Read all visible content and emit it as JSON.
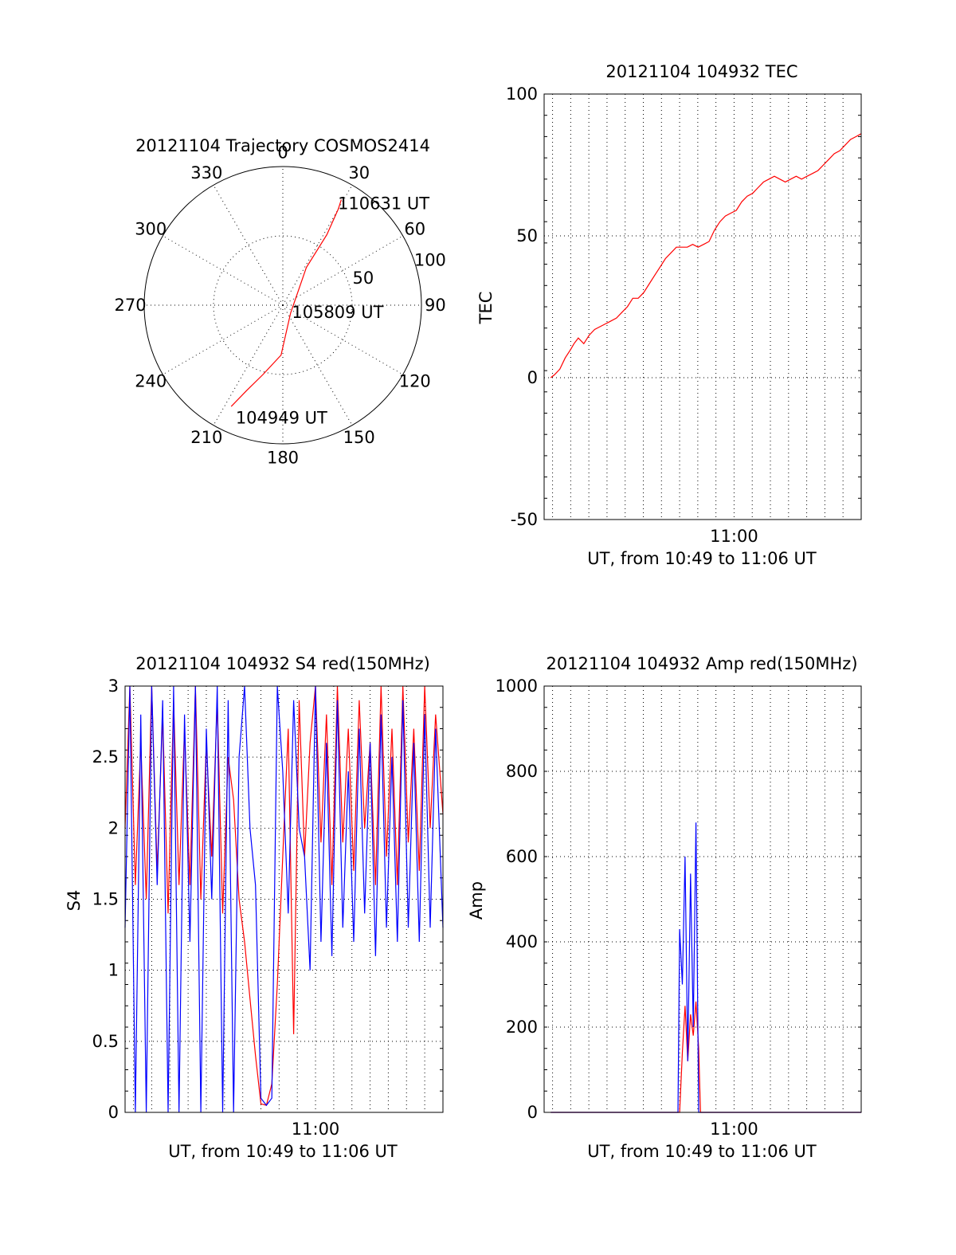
{
  "colors": {
    "red": "#ff0000",
    "blue": "#0000ff",
    "axis": "#000000"
  },
  "chart_data": [
    {
      "id": "trajectory",
      "type": "polar",
      "title": "20121104 Trajectory COSMOS2414",
      "angle_labels": [
        "0",
        "30",
        "60",
        "90",
        "120",
        "150",
        "180",
        "210",
        "240",
        "270",
        "300",
        "330"
      ],
      "radial_labels": [
        "50",
        "100"
      ],
      "radial_max": 100,
      "rings": [
        50,
        100
      ],
      "series": [
        {
          "color": "red",
          "points": [
            [
              207,
              82
            ],
            [
              203,
              67
            ],
            [
              196,
              52
            ],
            [
              182,
              36
            ],
            [
              135,
              8
            ],
            [
              32,
              32
            ],
            [
              32,
              60
            ],
            [
              30,
              80
            ],
            [
              29,
              87
            ]
          ]
        }
      ],
      "annotations": [
        {
          "text": "110631 UT",
          "az": 31,
          "el": 86
        },
        {
          "text": "105809 UT",
          "az": 112,
          "el": 12
        },
        {
          "text": "104949 UT",
          "az": 200,
          "el": 86
        }
      ]
    },
    {
      "id": "tec",
      "type": "line",
      "title": "20121104 104932 TEC",
      "xlabel": "UT, from 10:49 to 11:06 UT",
      "ylabel": "TEC",
      "xlim": [
        10.8256,
        11.1167
      ],
      "ylim": [
        -50,
        100
      ],
      "yticks": [
        "-50",
        "0",
        "50",
        "100"
      ],
      "xtick_values": [
        11.0
      ],
      "xtick_labels": [
        "11:00"
      ],
      "series": [
        {
          "color": "red",
          "x": [
            10.8317,
            10.835,
            10.84,
            10.845,
            10.85,
            10.853,
            10.857,
            10.862,
            10.867,
            10.872,
            10.877,
            10.882,
            10.887,
            10.892,
            10.897,
            10.902,
            10.907,
            10.912,
            10.917,
            10.922,
            10.927,
            10.932,
            10.937,
            10.942,
            10.947,
            10.952,
            10.957,
            10.962,
            10.967,
            10.972,
            10.977,
            10.982,
            10.987,
            10.992,
            10.997,
            11.002,
            11.007,
            11.012,
            11.017,
            11.022,
            11.027,
            11.032,
            11.037,
            11.042,
            11.047,
            11.052,
            11.057,
            11.062,
            11.067,
            11.072,
            11.077,
            11.082,
            11.087,
            11.092,
            11.097,
            11.102,
            11.107,
            11.112,
            11.1167
          ],
          "y": [
            0,
            1,
            3,
            7,
            10,
            12,
            14,
            12,
            15,
            17,
            18,
            19,
            20,
            21,
            23,
            25,
            28,
            28,
            30,
            33,
            36,
            39,
            42,
            44,
            46,
            46,
            46,
            47,
            46,
            47,
            48,
            52,
            55,
            57,
            58,
            59,
            62,
            64,
            65,
            67,
            69,
            70,
            71,
            70,
            69,
            70,
            71,
            70,
            71,
            72,
            73,
            75,
            77,
            79,
            80,
            82,
            84,
            85,
            86
          ]
        }
      ]
    },
    {
      "id": "s4",
      "type": "line",
      "title": "20121104 104932 S4 red(150MHz)",
      "xlabel": "UT, from 10:49 to 11:06 UT",
      "ylabel": "S4",
      "xlim": [
        10.8256,
        11.1167
      ],
      "ylim": [
        0,
        3
      ],
      "yticks": [
        "0",
        "0.5",
        "1",
        "1.5",
        "2",
        "2.5",
        "3"
      ],
      "xtick_values": [
        11.0
      ],
      "xtick_labels": [
        "11:00"
      ],
      "series": [
        {
          "color": "red",
          "x": [
            10.8256,
            10.83,
            10.835,
            10.84,
            10.845,
            10.85,
            10.855,
            10.86,
            10.865,
            10.87,
            10.875,
            10.88,
            10.885,
            10.89,
            10.895,
            10.9,
            10.905,
            10.91,
            10.915,
            10.92,
            10.925,
            10.93,
            10.935,
            10.94,
            10.945,
            10.95,
            10.955,
            10.96,
            10.965,
            10.97,
            10.975,
            10.98,
            10.985,
            10.99,
            10.995,
            11.0,
            11.005,
            11.01,
            11.015,
            11.02,
            11.025,
            11.03,
            11.035,
            11.04,
            11.045,
            11.05,
            11.055,
            11.06,
            11.065,
            11.07,
            11.075,
            11.08,
            11.085,
            11.09,
            11.095,
            11.1,
            11.105,
            11.11,
            11.1167
          ],
          "y": [
            2.0,
            3.0,
            1.6,
            2.6,
            1.5,
            3.0,
            1.7,
            2.8,
            1.4,
            2.9,
            1.6,
            2.7,
            1.6,
            3.0,
            1.5,
            2.6,
            1.8,
            2.9,
            1.4,
            2.5,
            2.2,
            1.5,
            1.2,
            0.8,
            0.4,
            0.06,
            0.05,
            0.2,
            0.9,
            1.8,
            2.7,
            0.55,
            2.9,
            1.8,
            2.6,
            3.0,
            1.9,
            2.8,
            1.6,
            3.0,
            1.9,
            2.7,
            1.7,
            2.9,
            2.0,
            2.6,
            1.6,
            3.0,
            1.8,
            2.7,
            1.6,
            3.0,
            1.9,
            2.7,
            1.7,
            3.0,
            2.0,
            2.8,
            2.1
          ]
        },
        {
          "color": "blue",
          "x": [
            10.8256,
            10.83,
            10.835,
            10.84,
            10.845,
            10.85,
            10.855,
            10.86,
            10.865,
            10.87,
            10.875,
            10.88,
            10.885,
            10.89,
            10.895,
            10.9,
            10.905,
            10.91,
            10.915,
            10.92,
            10.925,
            10.93,
            10.935,
            10.94,
            10.945,
            10.95,
            10.955,
            10.96,
            10.965,
            10.97,
            10.975,
            10.98,
            10.985,
            10.99,
            10.995,
            11.0,
            11.005,
            11.01,
            11.015,
            11.02,
            11.025,
            11.03,
            11.035,
            11.04,
            11.045,
            11.05,
            11.055,
            11.06,
            11.065,
            11.07,
            11.075,
            11.08,
            11.085,
            11.09,
            11.095,
            11.1,
            11.105,
            11.11,
            11.1167
          ],
          "y": [
            1.3,
            3.0,
            0.0,
            2.8,
            0.0,
            3.0,
            1.6,
            2.9,
            0.0,
            3.0,
            0.0,
            2.8,
            1.2,
            3.0,
            0.0,
            2.7,
            1.5,
            3.0,
            0.0,
            2.9,
            0.0,
            2.5,
            3.0,
            2.0,
            1.6,
            0.1,
            0.05,
            0.1,
            3.0,
            2.4,
            1.4,
            2.9,
            2.0,
            1.8,
            1.0,
            3.0,
            1.2,
            2.6,
            1.1,
            2.9,
            1.3,
            2.4,
            1.2,
            2.7,
            1.4,
            2.6,
            1.1,
            2.8,
            1.3,
            2.5,
            1.2,
            2.9,
            1.3,
            2.6,
            1.2,
            2.8,
            1.3,
            2.7,
            1.3
          ]
        }
      ]
    },
    {
      "id": "amp",
      "type": "line",
      "title": "20121104 104932 Amp red(150MHz)",
      "xlabel": "UT, from 10:49 to 11:06 UT",
      "ylabel": "Amp",
      "xlim": [
        10.8256,
        11.1167
      ],
      "ylim": [
        0,
        1000
      ],
      "yticks": [
        "0",
        "200",
        "400",
        "600",
        "800",
        "1000"
      ],
      "xtick_values": [
        11.0
      ],
      "xtick_labels": [
        "11:00"
      ],
      "series": [
        {
          "color": "red",
          "x": [
            10.8317,
            10.95,
            10.9525,
            10.955,
            10.9575,
            10.96,
            10.9625,
            10.965,
            10.9675,
            10.9692,
            10.98,
            11.1167
          ],
          "y": [
            0,
            0,
            140,
            250,
            120,
            230,
            180,
            260,
            150,
            0,
            0,
            0
          ]
        },
        {
          "color": "blue",
          "x": [
            10.8317,
            10.94,
            10.9485,
            10.95,
            10.9525,
            10.955,
            10.9575,
            10.96,
            10.9625,
            10.965,
            10.9675,
            10.97,
            10.975,
            11.0,
            11.04,
            11.05,
            11.1167
          ],
          "y": [
            0,
            0,
            0,
            430,
            300,
            600,
            120,
            560,
            200,
            680,
            0,
            0,
            0,
            0,
            0,
            0,
            0
          ]
        }
      ]
    }
  ]
}
